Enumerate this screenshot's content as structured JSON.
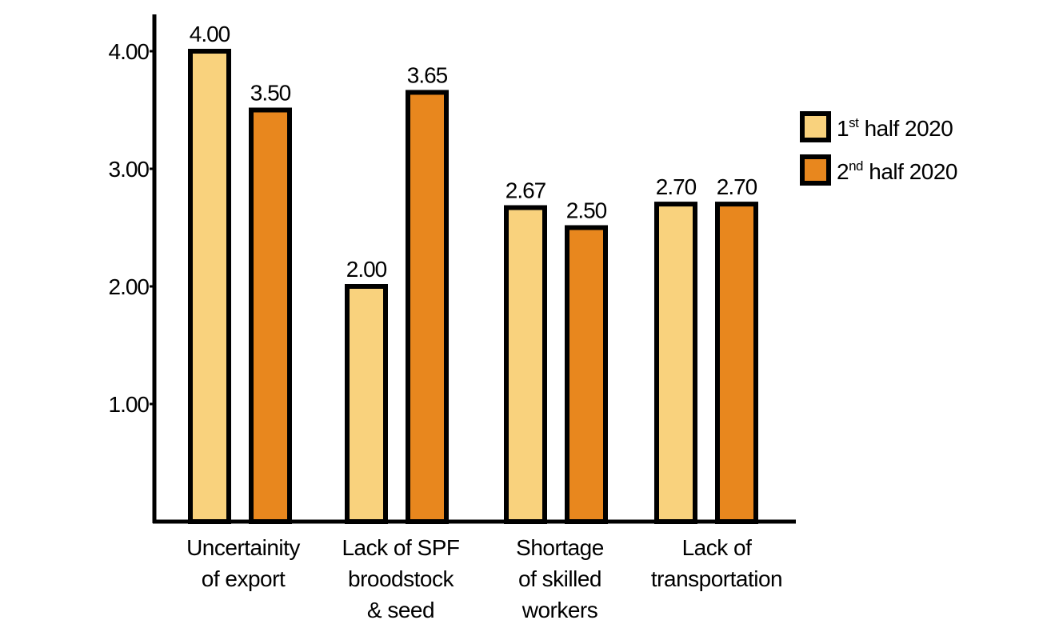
{
  "chart_data": {
    "type": "bar",
    "categories": [
      [
        "Uncertainity",
        "of export"
      ],
      [
        "Lack of SPF",
        "broodstock",
        "& seed"
      ],
      [
        "Shortage",
        "of skilled",
        "workers"
      ],
      [
        "Lack of",
        "transportation"
      ]
    ],
    "series": [
      {
        "name": "half 2020",
        "prefix": "1",
        "sup": "st",
        "color": "#F9D27D",
        "values": [
          4.0,
          2.0,
          2.67,
          2.7
        ]
      },
      {
        "name": "half 2020",
        "prefix": "2",
        "sup": "nd",
        "color": "#E8871E",
        "values": [
          3.5,
          3.65,
          2.5,
          2.7
        ]
      }
    ],
    "data_labels": [
      [
        "4.00",
        "2.00",
        "2.67",
        "2.70"
      ],
      [
        "3.50",
        "3.65",
        "2.50",
        "2.70"
      ]
    ],
    "yticks": [
      {
        "value": 1,
        "label": "1.00"
      },
      {
        "value": 2,
        "label": "2.00"
      },
      {
        "value": 3,
        "label": "3.00"
      },
      {
        "value": 4,
        "label": "4.00"
      }
    ],
    "ylim": [
      0,
      4.3
    ],
    "legend_position": "right",
    "grid": false
  }
}
